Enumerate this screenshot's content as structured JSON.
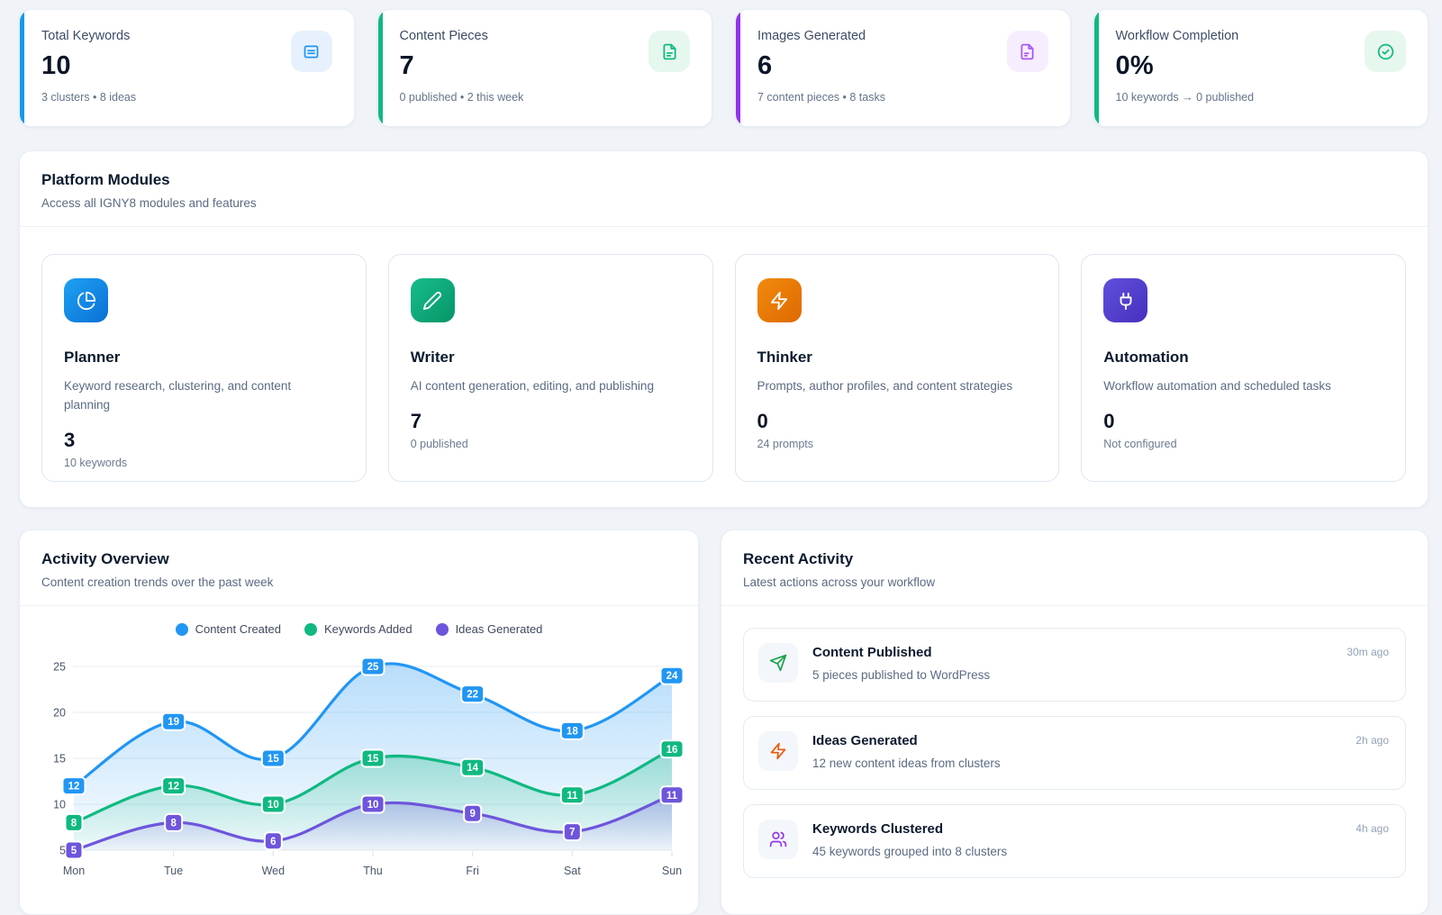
{
  "stats": [
    {
      "title": "Total Keywords",
      "value": "10",
      "subtitle": "3 clusters • 8 ideas",
      "accent_color": "#1598ec",
      "icon": "list",
      "icon_color": "#2196f3",
      "icon_bg": "#e7f1fe"
    },
    {
      "title": "Content Pieces",
      "value": "7",
      "subtitle": "0 published • 2 this week",
      "accent_color": "#10b981",
      "icon": "file-text",
      "icon_color": "#10b981",
      "icon_bg": "#e6f7ee"
    },
    {
      "title": "Images Generated",
      "value": "6",
      "subtitle": "7 content pieces • 8 tasks",
      "accent_color": "#9333ea",
      "icon": "file-image",
      "icon_color": "#a855f7",
      "icon_bg": "#f6eefe"
    },
    {
      "title": "Workflow Completion",
      "value": "0%",
      "subtitle": "10 keywords → 0 published",
      "accent_color": "#10b981",
      "icon": "check-circle",
      "icon_color": "#10b981",
      "icon_bg": "#e6f7ee"
    }
  ],
  "platform_modules": {
    "title": "Platform Modules",
    "subtitle": "Access all IGNY8 modules and features",
    "modules": [
      {
        "name": "Planner",
        "description": "Keyword research, clustering, and content planning",
        "stat_value": "3",
        "stat_label": "10 keywords",
        "icon": "pie-chart",
        "gradient": [
          "#1da2f2",
          "#0b6fd6"
        ]
      },
      {
        "name": "Writer",
        "description": "AI content generation, editing, and publishing",
        "stat_value": "7",
        "stat_label": "0 published",
        "icon": "pencil",
        "gradient": [
          "#17bd8d",
          "#079467"
        ]
      },
      {
        "name": "Thinker",
        "description": "Prompts, author profiles, and content strategies",
        "stat_value": "0",
        "stat_label": "24 prompts",
        "icon": "zap",
        "gradient": [
          "#f28a0c",
          "#de6902"
        ]
      },
      {
        "name": "Automation",
        "description": "Workflow automation and scheduled tasks",
        "stat_value": "0",
        "stat_label": "Not configured",
        "icon": "plug",
        "gradient": [
          "#6150dd",
          "#4530bd"
        ]
      }
    ]
  },
  "activity_overview": {
    "title": "Activity Overview",
    "subtitle": "Content creation trends over the past week"
  },
  "chart_data": {
    "type": "area",
    "x": [
      "Mon",
      "Tue",
      "Wed",
      "Thu",
      "Fri",
      "Sat",
      "Sun"
    ],
    "series": [
      {
        "name": "Content Created",
        "color": "#2196f3",
        "values": [
          12,
          19,
          15,
          25,
          22,
          18,
          24
        ]
      },
      {
        "name": "Keywords Added",
        "color": "#10b981",
        "values": [
          8,
          12,
          10,
          15,
          14,
          11,
          16
        ]
      },
      {
        "name": "Ideas Generated",
        "color": "#6e55dc",
        "values": [
          5,
          8,
          6,
          10,
          9,
          7,
          11
        ]
      }
    ],
    "ylim": [
      5,
      25
    ],
    "yticks": [
      5,
      10,
      15,
      20,
      25
    ],
    "grid": true,
    "legend_position": "top",
    "point_labels": true
  },
  "recent_activity": {
    "title": "Recent Activity",
    "subtitle": "Latest actions across your workflow",
    "items": [
      {
        "title": "Content Published",
        "description": "5 pieces published to WordPress",
        "time": "30m ago",
        "icon": "send",
        "icon_color": "#16a34a"
      },
      {
        "title": "Ideas Generated",
        "description": "12 new content ideas from clusters",
        "time": "2h ago",
        "icon": "zap",
        "icon_color": "#ea580c"
      },
      {
        "title": "Keywords Clustered",
        "description": "45 keywords grouped into 8 clusters",
        "time": "4h ago",
        "icon": "users",
        "icon_color": "#9333ea"
      }
    ]
  }
}
